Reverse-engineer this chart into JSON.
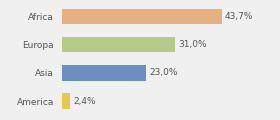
{
  "categories": [
    "America",
    "Asia",
    "Europa",
    "Africa"
  ],
  "values": [
    2.4,
    23.0,
    31.0,
    43.7
  ],
  "labels": [
    "2,4%",
    "23,0%",
    "31,0%",
    "43,7%"
  ],
  "bar_colors": [
    "#e8c84a",
    "#6b8fbf",
    "#b5c98a",
    "#e8b080"
  ],
  "background_color": "#f0f0f0",
  "xlim": [
    0,
    58
  ],
  "label_fontsize": 6.5,
  "tick_fontsize": 6.5,
  "bar_height": 0.55
}
